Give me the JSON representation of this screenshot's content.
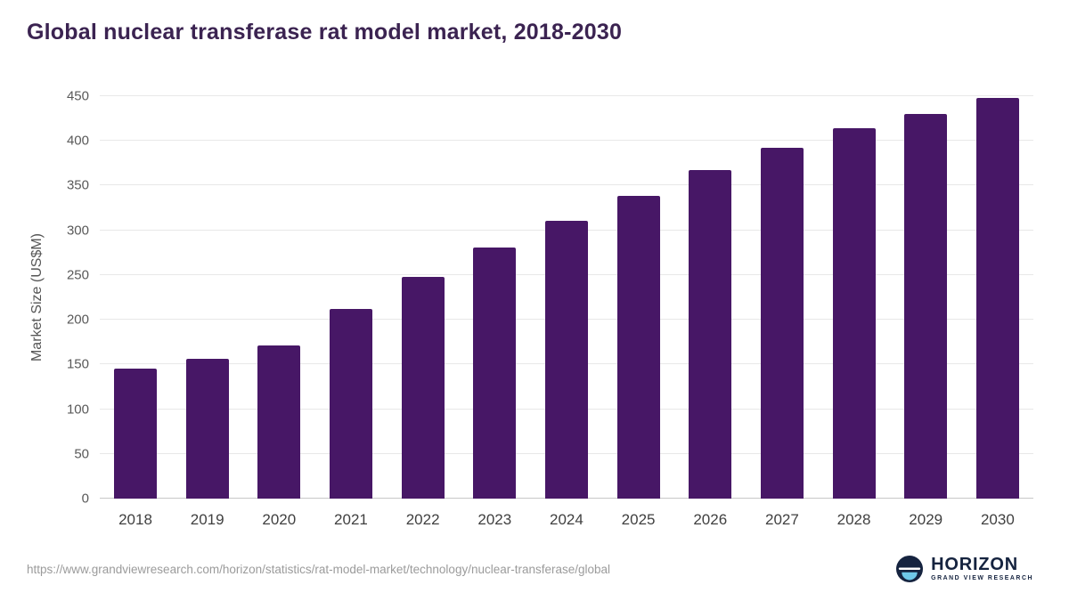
{
  "title": "Global nuclear transferase rat model market, 2018-2030",
  "footer": {
    "source_url": "https://www.grandviewresearch.com/horizon/statistics/rat-model-market/technology/nuclear-transferase/global",
    "logo_text": "HORIZON",
    "logo_subtext": "GRAND VIEW RESEARCH"
  },
  "colors": {
    "bar": "#471766",
    "title_text": "#3b2351",
    "axis_text": "#555555",
    "tick_text": "#595959",
    "xtick_text": "#404040",
    "gridline": "#e8e8e8",
    "baseline": "#c8c8c8",
    "source_text": "#9b9b9b",
    "logo_navy": "#15233f",
    "logo_blue": "#6fc8e8"
  },
  "chart_data": {
    "type": "bar",
    "title": "Global nuclear transferase rat model market, 2018-2030",
    "categories": [
      "2018",
      "2019",
      "2020",
      "2021",
      "2022",
      "2023",
      "2024",
      "2025",
      "2026",
      "2027",
      "2028",
      "2029",
      "2030"
    ],
    "values": [
      145,
      156,
      171,
      212,
      248,
      281,
      311,
      339,
      367,
      392,
      414,
      430,
      448
    ],
    "xlabel": "",
    "ylabel": "Market Size (US$M)",
    "ylim": [
      0,
      450
    ],
    "yticks": [
      0,
      50,
      100,
      150,
      200,
      250,
      300,
      350,
      400,
      450
    ],
    "grid": true,
    "legend": "none",
    "bar_color": "#471766"
  }
}
